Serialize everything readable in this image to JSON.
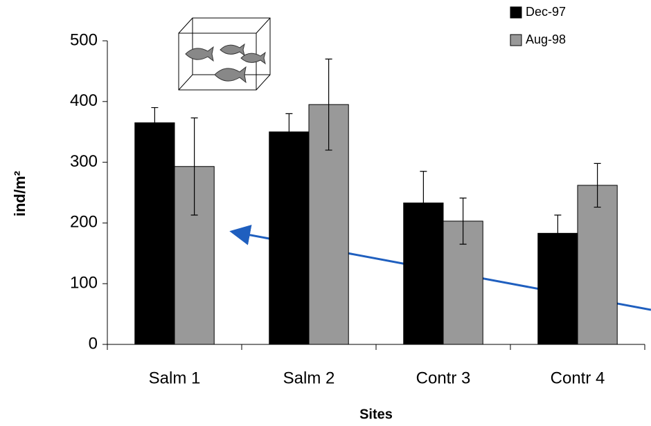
{
  "chart_data": {
    "type": "bar",
    "xlabel": "Sites",
    "ylabel": "ind/m²",
    "categories": [
      "Salm 1",
      "Salm 2",
      "Contr 3",
      "Contr 4"
    ],
    "series": [
      {
        "name": "Dec-97",
        "color": "#000000",
        "values": [
          365,
          350,
          233,
          183
        ],
        "errors": [
          25,
          30,
          52,
          30
        ]
      },
      {
        "name": "Aug-98",
        "color": "#999999",
        "values": [
          293,
          395,
          203,
          262
        ],
        "errors": [
          80,
          75,
          38,
          36
        ]
      }
    ],
    "ylim": [
      0,
      500
    ],
    "yticks": [
      0,
      100,
      200,
      300,
      400,
      500
    ],
    "grid": false,
    "legend": "top-right"
  }
}
